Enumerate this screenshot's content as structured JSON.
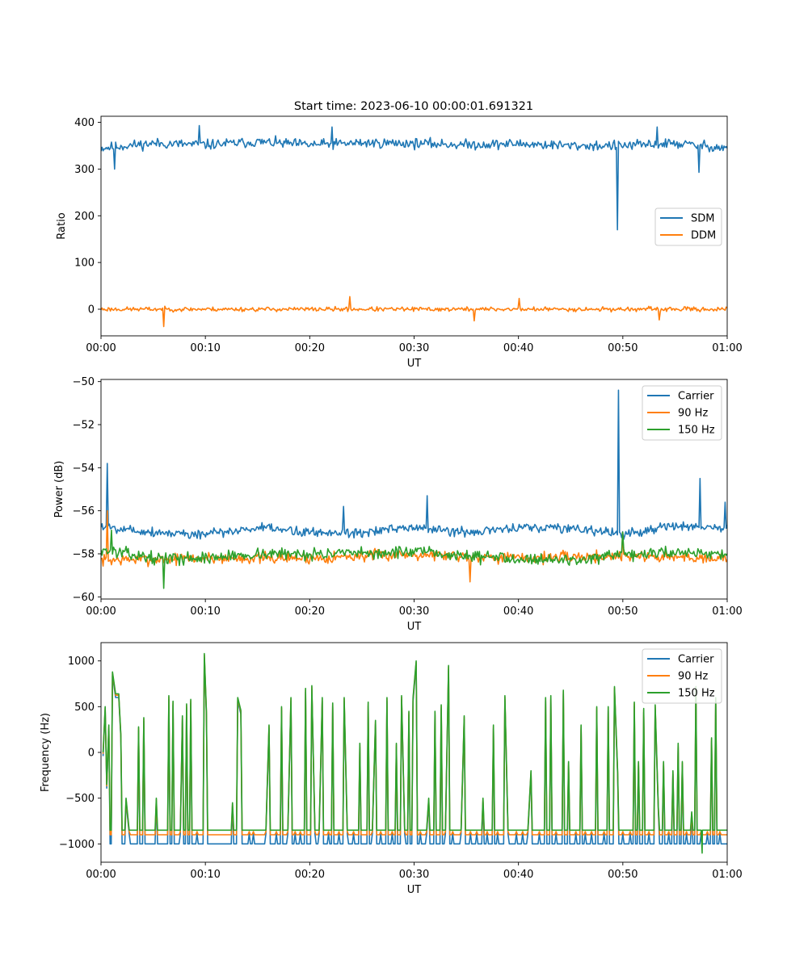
{
  "figure": {
    "title": "Start time: 2023-06-10 00:00:01.691321"
  },
  "chart_data": [
    {
      "type": "line",
      "title": "Start time: 2023-06-10 00:00:01.691321",
      "xlabel": "UT",
      "ylabel": "Ratio",
      "xlim_minutes": [
        0,
        60
      ],
      "x_ticks": [
        {
          "value": 0,
          "label": "00:00"
        },
        {
          "value": 10,
          "label": "00:10"
        },
        {
          "value": 20,
          "label": "00:20"
        },
        {
          "value": 30,
          "label": "00:30"
        },
        {
          "value": 40,
          "label": "00:40"
        },
        {
          "value": 50,
          "label": "00:50"
        },
        {
          "value": 60,
          "label": "01:00"
        }
      ],
      "ylim": [
        -57,
        413
      ],
      "y_ticks": [
        {
          "value": 0,
          "label": "0"
        },
        {
          "value": 100,
          "label": "100"
        },
        {
          "value": 200,
          "label": "200"
        },
        {
          "value": 300,
          "label": "300"
        },
        {
          "value": 400,
          "label": "400"
        }
      ],
      "legend": {
        "placement": "center-right"
      },
      "series": [
        {
          "name": "SDM",
          "color": "#1f77b4",
          "points": 600,
          "baseline": [
            [
              0,
              345
            ],
            [
              5,
              355
            ],
            [
              10,
              352
            ],
            [
              15,
              358
            ],
            [
              20,
              352
            ],
            [
              25,
              356
            ],
            [
              30,
              355
            ],
            [
              35,
              352
            ],
            [
              40,
              354
            ],
            [
              45,
              350
            ],
            [
              50,
              350
            ],
            [
              55,
              355
            ],
            [
              60,
              345
            ]
          ],
          "noise": 16,
          "seed": 11,
          "spikes": [
            [
              1.3,
              300
            ],
            [
              49.5,
              170
            ],
            [
              57.3,
              293
            ],
            [
              9.4,
              393
            ],
            [
              22.1,
              390
            ],
            [
              53.3,
              390
            ]
          ]
        },
        {
          "name": "DDM",
          "color": "#ff7f0e",
          "points": 600,
          "baseline": [
            [
              0,
              0
            ],
            [
              15,
              0
            ],
            [
              30,
              0
            ],
            [
              45,
              0
            ],
            [
              60,
              0
            ]
          ],
          "noise": 7,
          "seed": 23,
          "spikes": [
            [
              6.0,
              -37
            ],
            [
              23.8,
              27
            ],
            [
              35.8,
              -25
            ],
            [
              53.5,
              -23
            ],
            [
              40.1,
              23
            ]
          ]
        }
      ]
    },
    {
      "type": "line",
      "xlabel": "UT",
      "ylabel": "Power (dB)",
      "xlim_minutes": [
        0,
        60
      ],
      "x_ticks": [
        {
          "value": 0,
          "label": "00:00"
        },
        {
          "value": 10,
          "label": "00:10"
        },
        {
          "value": 20,
          "label": "00:20"
        },
        {
          "value": 30,
          "label": "00:30"
        },
        {
          "value": 40,
          "label": "00:40"
        },
        {
          "value": 50,
          "label": "00:50"
        },
        {
          "value": 60,
          "label": "01:00"
        }
      ],
      "ylim": [
        -60.1,
        -49.9
      ],
      "y_ticks": [
        {
          "value": -60,
          "label": "−60"
        },
        {
          "value": -58,
          "label": "−58"
        },
        {
          "value": -56,
          "label": "−56"
        },
        {
          "value": -54,
          "label": "−54"
        },
        {
          "value": -52,
          "label": "−52"
        },
        {
          "value": -50,
          "label": "−50"
        }
      ],
      "legend": {
        "placement": "top-right"
      },
      "series": [
        {
          "name": "Carrier",
          "color": "#1f77b4",
          "points": 600,
          "baseline": [
            [
              0,
              -56.7
            ],
            [
              5,
              -57.0
            ],
            [
              10,
              -57.1
            ],
            [
              15,
              -56.8
            ],
            [
              20,
              -57.0
            ],
            [
              25,
              -57.0
            ],
            [
              30,
              -56.8
            ],
            [
              35,
              -57.0
            ],
            [
              40,
              -56.8
            ],
            [
              45,
              -56.8
            ],
            [
              50,
              -57.1
            ],
            [
              55,
              -56.7
            ],
            [
              60,
              -56.8
            ]
          ],
          "noise": 0.35,
          "seed": 5,
          "spikes": [
            [
              0.6,
              -53.8
            ],
            [
              31.3,
              -55.3
            ],
            [
              49.6,
              -50.4
            ],
            [
              57.4,
              -54.5
            ],
            [
              59.8,
              -55.6
            ],
            [
              23.2,
              -55.8
            ]
          ]
        },
        {
          "name": "90 Hz",
          "color": "#ff7f0e",
          "points": 600,
          "baseline": [
            [
              0,
              -58.3
            ],
            [
              10,
              -58.2
            ],
            [
              20,
              -58.2
            ],
            [
              30,
              -58.0
            ],
            [
              40,
              -58.2
            ],
            [
              50,
              -58.1
            ],
            [
              60,
              -58.2
            ]
          ],
          "noise": 0.4,
          "seed": 7,
          "spikes": [
            [
              0.6,
              -56.0
            ],
            [
              35.4,
              -59.3
            ],
            [
              50.0,
              -57.0
            ]
          ]
        },
        {
          "name": "150 Hz",
          "color": "#2ca02c",
          "points": 600,
          "baseline": [
            [
              0,
              -57.8
            ],
            [
              5,
              -58.2
            ],
            [
              10,
              -58.2
            ],
            [
              15,
              -58.0
            ],
            [
              20,
              -58.0
            ],
            [
              25,
              -58.0
            ],
            [
              30,
              -57.9
            ],
            [
              35,
              -58.1
            ],
            [
              40,
              -58.2
            ],
            [
              45,
              -58.3
            ],
            [
              50,
              -58.1
            ],
            [
              55,
              -57.9
            ],
            [
              60,
              -58.0
            ]
          ],
          "noise": 0.4,
          "seed": 13,
          "spikes": [
            [
              6.0,
              -59.6
            ],
            [
              1.0,
              -56.9
            ],
            [
              50.0,
              -57.0
            ]
          ]
        }
      ]
    },
    {
      "type": "line",
      "xlabel": "UT",
      "ylabel": "Frequency (Hz)",
      "xlim_minutes": [
        0,
        60
      ],
      "x_ticks": [
        {
          "value": 0,
          "label": "00:00"
        },
        {
          "value": 10,
          "label": "00:10"
        },
        {
          "value": 20,
          "label": "00:20"
        },
        {
          "value": 30,
          "label": "00:30"
        },
        {
          "value": 40,
          "label": "00:40"
        },
        {
          "value": 50,
          "label": "00:50"
        },
        {
          "value": 60,
          "label": "01:00"
        }
      ],
      "ylim": [
        -1200,
        1200
      ],
      "y_ticks": [
        {
          "value": -1000,
          "label": "−1000"
        },
        {
          "value": -500,
          "label": "−500"
        },
        {
          "value": 0,
          "label": "0"
        },
        {
          "value": 500,
          "label": "500"
        },
        {
          "value": 1000,
          "label": "1000"
        }
      ],
      "legend": {
        "placement": "top-right"
      },
      "series": [
        {
          "name": "Carrier",
          "color": "#1f77b4",
          "floor": -1000
        },
        {
          "name": "90 Hz",
          "color": "#ff7f0e",
          "floor": -900
        },
        {
          "name": "150 Hz",
          "color": "#2ca02c",
          "floor": -850
        }
      ],
      "peaks": [
        [
          0.2,
          0
        ],
        [
          0.4,
          500
        ],
        [
          0.55,
          -350
        ],
        [
          0.75,
          300
        ],
        [
          1.1,
          880
        ],
        [
          1.4,
          640
        ],
        [
          1.7,
          640
        ],
        [
          1.9,
          200
        ],
        [
          2.4,
          -500
        ],
        [
          2.7,
          -850
        ],
        [
          3.6,
          280
        ],
        [
          4.1,
          380
        ],
        [
          5.3,
          -500
        ],
        [
          6.5,
          620
        ],
        [
          6.9,
          560
        ],
        [
          7.6,
          -850
        ],
        [
          7.8,
          400
        ],
        [
          8.2,
          530
        ],
        [
          8.6,
          580
        ],
        [
          9.2,
          -850
        ],
        [
          9.9,
          1080
        ],
        [
          10.1,
          450
        ],
        [
          12.6,
          -550
        ],
        [
          13.1,
          600
        ],
        [
          13.4,
          460
        ],
        [
          14.2,
          -850
        ],
        [
          14.6,
          -850
        ],
        [
          15.8,
          -850
        ],
        [
          16.1,
          300
        ],
        [
          16.8,
          -850
        ],
        [
          17.3,
          500
        ],
        [
          17.9,
          -850
        ],
        [
          18.2,
          600
        ],
        [
          18.6,
          -850
        ],
        [
          19.1,
          -850
        ],
        [
          19.6,
          700
        ],
        [
          20.2,
          730
        ],
        [
          20.5,
          -850
        ],
        [
          20.9,
          -850
        ],
        [
          21.2,
          600
        ],
        [
          21.8,
          -850
        ],
        [
          22.2,
          540
        ],
        [
          22.8,
          -850
        ],
        [
          23.3,
          600
        ],
        [
          23.6,
          -850
        ],
        [
          24.2,
          -850
        ],
        [
          24.8,
          100
        ],
        [
          25.6,
          550
        ],
        [
          26.0,
          -850
        ],
        [
          26.3,
          350
        ],
        [
          26.8,
          -850
        ],
        [
          27.4,
          600
        ],
        [
          27.9,
          -850
        ],
        [
          28.3,
          100
        ],
        [
          28.8,
          620
        ],
        [
          29.1,
          -850
        ],
        [
          29.5,
          450
        ],
        [
          29.9,
          600
        ],
        [
          30.2,
          1000
        ],
        [
          30.6,
          -850
        ],
        [
          31.2,
          -850
        ],
        [
          31.4,
          -500
        ],
        [
          32.0,
          450
        ],
        [
          32.6,
          520
        ],
        [
          33.0,
          -850
        ],
        [
          33.3,
          950
        ],
        [
          33.7,
          -850
        ],
        [
          34.5,
          -850
        ],
        [
          34.8,
          400
        ],
        [
          35.4,
          -850
        ],
        [
          36.0,
          -850
        ],
        [
          36.6,
          -500
        ],
        [
          37.0,
          -850
        ],
        [
          37.6,
          300
        ],
        [
          38.0,
          -850
        ],
        [
          38.7,
          620
        ],
        [
          39.0,
          -850
        ],
        [
          39.8,
          -850
        ],
        [
          40.4,
          -850
        ],
        [
          40.9,
          -850
        ],
        [
          41.2,
          -200
        ],
        [
          42.0,
          -850
        ],
        [
          42.6,
          600
        ],
        [
          43.1,
          620
        ],
        [
          43.6,
          -850
        ],
        [
          44.3,
          680
        ],
        [
          44.8,
          -100
        ],
        [
          45.5,
          -850
        ],
        [
          46.0,
          300
        ],
        [
          46.4,
          -850
        ],
        [
          47.0,
          -850
        ],
        [
          47.5,
          500
        ],
        [
          48.2,
          -850
        ],
        [
          48.6,
          500
        ],
        [
          49.2,
          720
        ],
        [
          49.5,
          -200
        ],
        [
          50.0,
          -850
        ],
        [
          50.7,
          -850
        ],
        [
          51.1,
          550
        ],
        [
          51.5,
          -100
        ],
        [
          52.0,
          480
        ],
        [
          52.5,
          -850
        ],
        [
          53.1,
          520
        ],
        [
          53.4,
          -600
        ],
        [
          53.9,
          -100
        ],
        [
          54.4,
          -850
        ],
        [
          54.8,
          -200
        ],
        [
          55.3,
          100
        ],
        [
          55.7,
          -100
        ],
        [
          56.1,
          -850
        ],
        [
          56.6,
          -650
        ],
        [
          57.0,
          720
        ],
        [
          57.5,
          -850
        ],
        [
          58.1,
          -850
        ],
        [
          58.5,
          160
        ],
        [
          58.9,
          600
        ],
        [
          59.3,
          -850
        ]
      ],
      "dips": [
        [
          57.6,
          -1100
        ]
      ]
    }
  ]
}
